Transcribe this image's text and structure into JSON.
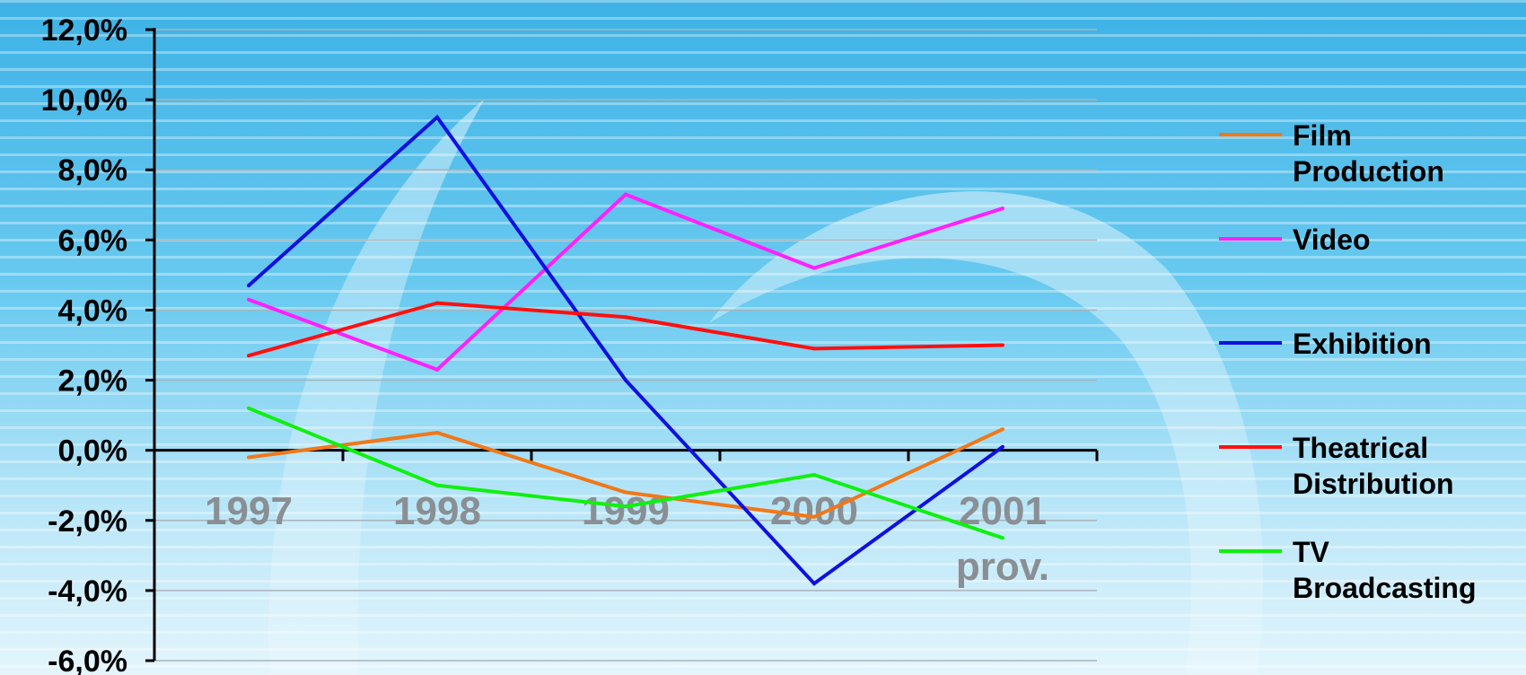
{
  "chart_data": {
    "type": "line",
    "categories": [
      [
        "1997"
      ],
      [
        "1998"
      ],
      [
        "1999"
      ],
      [
        "2000"
      ],
      [
        "2001",
        "prov."
      ]
    ],
    "ylim": [
      -6,
      12
    ],
    "yticks": [
      {
        "value": 12,
        "label": "12,0%"
      },
      {
        "value": 10,
        "label": "10,0%"
      },
      {
        "value": 8,
        "label": "8,0%"
      },
      {
        "value": 6,
        "label": "6,0%"
      },
      {
        "value": 4,
        "label": "4,0%"
      },
      {
        "value": 2,
        "label": "2,0%"
      },
      {
        "value": 0,
        "label": "0,0%"
      },
      {
        "value": -2,
        "label": "-2,0%"
      },
      {
        "value": -4,
        "label": "-4,0%"
      },
      {
        "value": -6,
        "label": "-6,0%"
      }
    ],
    "grid": true,
    "legend_position": "right",
    "series": [
      {
        "name": [
          "Film",
          "Production"
        ],
        "color": "#f07818",
        "values": [
          -0.2,
          0.5,
          -1.2,
          -1.9,
          0.6
        ]
      },
      {
        "name": [
          "Video"
        ],
        "color": "#ff20ff",
        "values": [
          4.3,
          2.3,
          7.3,
          5.2,
          6.9
        ]
      },
      {
        "name": [
          "Exhibition"
        ],
        "color": "#1010e0",
        "values": [
          4.7,
          9.5,
          2.0,
          -3.8,
          0.1
        ]
      },
      {
        "name": [
          "Theatrical",
          "Distribution"
        ],
        "color": "#ff1010",
        "values": [
          2.7,
          4.2,
          3.8,
          2.9,
          3.0
        ]
      },
      {
        "name": [
          "TV",
          "Broadcasting"
        ],
        "color": "#10f010",
        "values": [
          1.2,
          -1.0,
          -1.6,
          -0.7,
          -2.5
        ]
      }
    ]
  }
}
